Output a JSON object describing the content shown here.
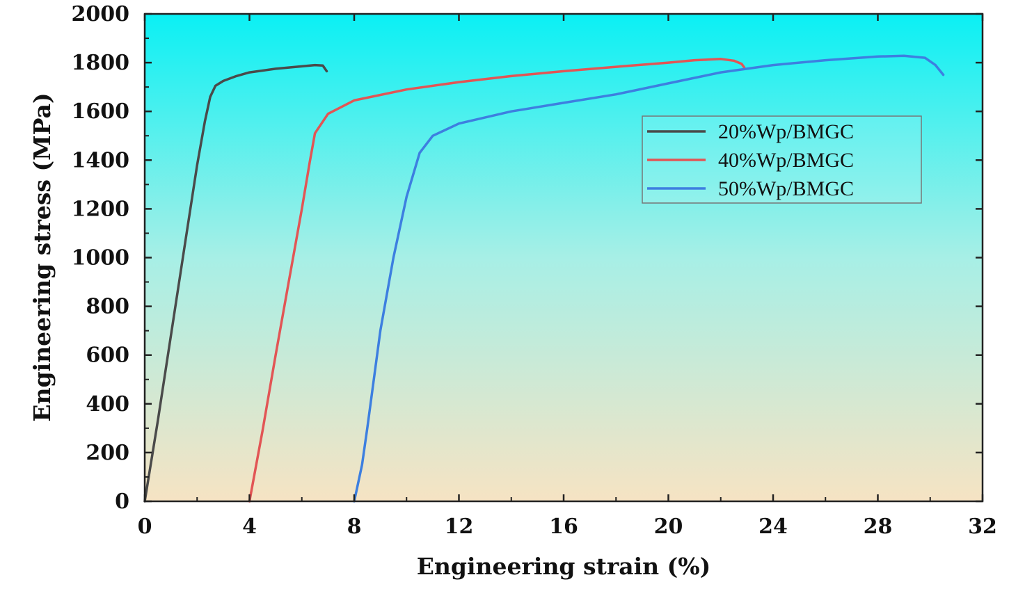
{
  "chart_data": {
    "type": "line",
    "title": "",
    "xlabel": "Engineering strain (%)",
    "ylabel": "Engineering stress (MPa)",
    "xlim": [
      0,
      32
    ],
    "ylim": [
      0,
      2000
    ],
    "x_ticks": [
      0,
      4,
      8,
      12,
      16,
      20,
      24,
      28,
      32
    ],
    "y_ticks": [
      0,
      200,
      400,
      600,
      800,
      1000,
      1200,
      1400,
      1600,
      1800,
      2000
    ],
    "x_tick_labels": [
      "0",
      "4",
      "8",
      "12",
      "16",
      "20",
      "24",
      "28",
      "32"
    ],
    "y_tick_labels": [
      "0",
      "200",
      "400",
      "600",
      "800",
      "1000",
      "1200",
      "1400",
      "1600",
      "1800",
      "2000"
    ],
    "grid": false,
    "legend_position": "top-right",
    "background": {
      "gradient_top": "#0af0f4",
      "gradient_middle": "#a7efe6",
      "gradient_bottom": "#f6e3c3"
    },
    "series": [
      {
        "name": "20%Wp/BMGC",
        "color": "#4a4a4a",
        "x": [
          0,
          0.5,
          1.0,
          1.5,
          2.0,
          2.3,
          2.5,
          2.7,
          3.0,
          3.5,
          4.0,
          5.0,
          6.0,
          6.5,
          6.8,
          6.95
        ],
        "y": [
          0,
          330,
          680,
          1030,
          1380,
          1560,
          1660,
          1705,
          1725,
          1745,
          1760,
          1775,
          1785,
          1790,
          1788,
          1765
        ]
      },
      {
        "name": "40%Wp/BMGC",
        "color": "#e25555",
        "x": [
          4.0,
          4.5,
          5.0,
          5.5,
          6.0,
          6.3,
          6.5,
          7.0,
          8.0,
          10.0,
          12.0,
          14.0,
          16.0,
          18.0,
          20.0,
          21.0,
          22.0,
          22.5,
          22.8,
          22.9
        ],
        "y": [
          0,
          290,
          600,
          900,
          1200,
          1390,
          1510,
          1590,
          1645,
          1690,
          1720,
          1745,
          1765,
          1783,
          1800,
          1810,
          1815,
          1808,
          1795,
          1780
        ]
      },
      {
        "name": "50%Wp/BMGC",
        "color": "#3d7fe0",
        "x": [
          8.0,
          8.1,
          8.3,
          8.5,
          9.0,
          9.5,
          10.0,
          10.5,
          11.0,
          12.0,
          14.0,
          16.0,
          18.0,
          20.0,
          22.0,
          24.0,
          26.0,
          28.0,
          29.0,
          29.8,
          30.2,
          30.5
        ],
        "y": [
          0,
          50,
          150,
          300,
          700,
          1000,
          1250,
          1430,
          1500,
          1550,
          1600,
          1635,
          1670,
          1715,
          1760,
          1790,
          1810,
          1825,
          1828,
          1820,
          1790,
          1750
        ]
      }
    ]
  }
}
